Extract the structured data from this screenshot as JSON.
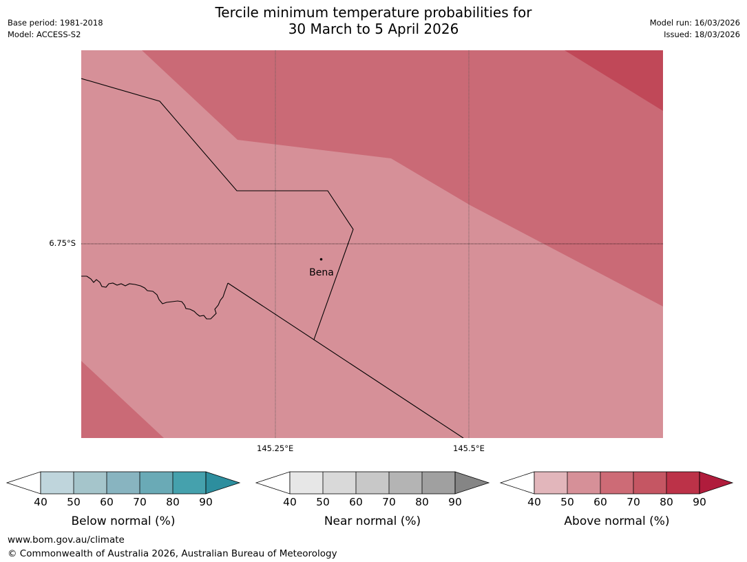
{
  "title_line1": "Tercile minimum temperature probabilities for",
  "title_line2": "30 March to 5 April 2026",
  "meta": {
    "base_period": "Base period: 1981-2018",
    "model": "Model: ACCESS-S2",
    "model_run": "Model run: 16/03/2026",
    "issued": "Issued: 18/03/2026"
  },
  "map": {
    "lat_label": "6.75°S",
    "lon_labels": [
      "145.25°E",
      "145.5°E"
    ],
    "town": "Bena"
  },
  "colorbars": [
    {
      "label": "Below normal (%)",
      "ticks": [
        "40",
        "50",
        "60",
        "70",
        "80",
        "90"
      ],
      "colors": [
        "#bfd5dc",
        "#a5c5cb",
        "#88b4c0",
        "#6aaab6",
        "#45a1ad",
        "#2d8e9e"
      ]
    },
    {
      "label": "Near normal (%)",
      "ticks": [
        "40",
        "50",
        "60",
        "70",
        "80",
        "90"
      ],
      "colors": [
        "#e7e7e7",
        "#d9d9d9",
        "#c8c8c8",
        "#b4b4b4",
        "#a0a0a0",
        "#858585"
      ]
    },
    {
      "label": "Above normal (%)",
      "ticks": [
        "40",
        "50",
        "60",
        "70",
        "80",
        "90"
      ],
      "colors": [
        "#e2b6bb",
        "#d69098",
        "#cd6b76",
        "#c55663",
        "#bc3248",
        "#b01c3c"
      ]
    }
  ],
  "footer": {
    "website": "www.bom.gov.au/climate",
    "copyright": "© Commonwealth of Australia 2026, Australian Bureau of Meteorology"
  }
}
